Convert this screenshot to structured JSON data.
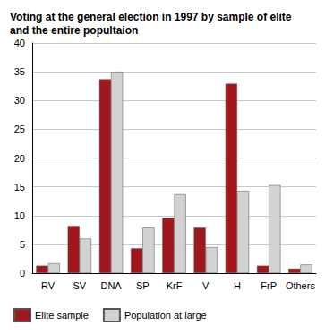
{
  "chart_data": {
    "type": "bar",
    "title": "Voting at the general election in 1997 by sample of elite and the entire popultaion",
    "categories": [
      "RV",
      "SV",
      "DNA",
      "SP",
      "KrF",
      "V",
      "H",
      "FrP",
      "Others"
    ],
    "series": [
      {
        "name": "Elite sample",
        "color": "#a0181e",
        "values": [
          1.3,
          8.2,
          33.7,
          4.3,
          9.6,
          7.9,
          32.9,
          1.3,
          0.8
        ]
      },
      {
        "name": "Population at large",
        "color": "#d2d2d2",
        "values": [
          1.7,
          6.0,
          35.0,
          7.9,
          13.7,
          4.5,
          14.3,
          15.3,
          1.5
        ]
      }
    ],
    "ylim": [
      0,
      40
    ],
    "yticks": [
      0,
      5,
      10,
      15,
      20,
      25,
      30,
      35,
      40
    ],
    "grid": true,
    "legend": "bottom-left"
  }
}
